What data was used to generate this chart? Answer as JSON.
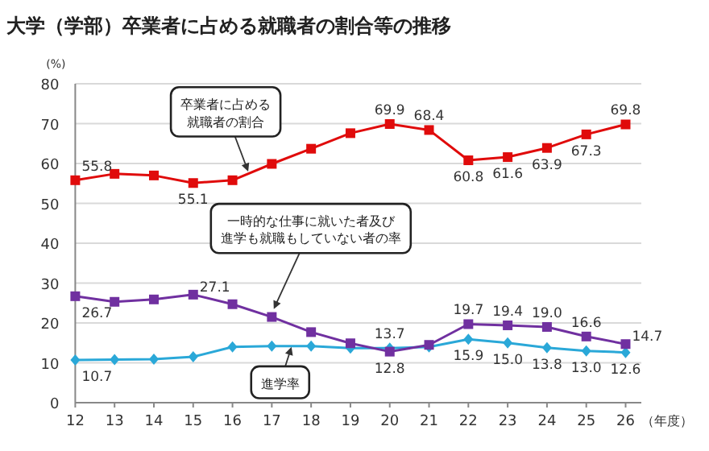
{
  "chart_data": {
    "type": "line",
    "title": "大学（学部）卒業者に占める就職者の割合等の推移",
    "ylabel": "(%)",
    "xlabel": "（年度）",
    "x": [
      12,
      13,
      14,
      15,
      16,
      17,
      18,
      19,
      20,
      21,
      22,
      23,
      24,
      25,
      26
    ],
    "xlim": [
      12,
      26.4
    ],
    "xticks": [
      12,
      13,
      14,
      15,
      16,
      17,
      18,
      19,
      20,
      21,
      22,
      23,
      24,
      25,
      26
    ],
    "ylim": [
      0,
      80
    ],
    "yticks": [
      0,
      10,
      20,
      30,
      40,
      50,
      60,
      70,
      80
    ],
    "grid": "y",
    "line_style": "solid",
    "series": [
      {
        "color": "#e00b0b",
        "marker": "square",
        "values": [
          55.8,
          57.4,
          57.0,
          55.1,
          55.8,
          59.9,
          63.7,
          67.6,
          69.9,
          68.4,
          60.8,
          61.6,
          63.9,
          67.3,
          69.8
        ],
        "value_labels": [
          "55.8",
          null,
          null,
          "55.1",
          null,
          null,
          null,
          null,
          "69.9",
          "68.4",
          "60.8",
          "61.6",
          "63.9",
          "67.3",
          "69.8"
        ]
      },
      {
        "color": "#7030a0",
        "marker": "square",
        "values": [
          26.7,
          25.3,
          25.9,
          27.1,
          24.7,
          21.5,
          17.7,
          14.9,
          12.8,
          14.5,
          19.7,
          19.4,
          19.0,
          16.6,
          14.7
        ],
        "value_labels": [
          "26.7",
          null,
          null,
          "27.1",
          null,
          null,
          null,
          null,
          "12.8",
          null,
          "19.7",
          "19.4",
          "19.0",
          "16.6",
          "14.7"
        ]
      },
      {
        "color": "#2aa8d8",
        "marker": "diamond",
        "values": [
          10.7,
          10.8,
          10.9,
          11.5,
          14.0,
          14.2,
          14.2,
          13.7,
          13.7,
          14.0,
          15.9,
          15.0,
          13.8,
          13.0,
          12.6
        ],
        "value_labels": [
          "10.7",
          null,
          null,
          null,
          null,
          null,
          null,
          null,
          "13.7",
          null,
          "15.9",
          "15.0",
          "13.8",
          "13.0",
          "12.6"
        ]
      }
    ],
    "annotations": [
      {
        "text": "卒業者に占める就職者の割合",
        "x": 16.4,
        "y": 58
      },
      {
        "text": "一時的な仕事に就いた者及び進学も就職もしていない者の率",
        "x": 17.05,
        "y": 23.5
      },
      {
        "text": "進学率",
        "x": 17.5,
        "y": 14
      }
    ]
  }
}
